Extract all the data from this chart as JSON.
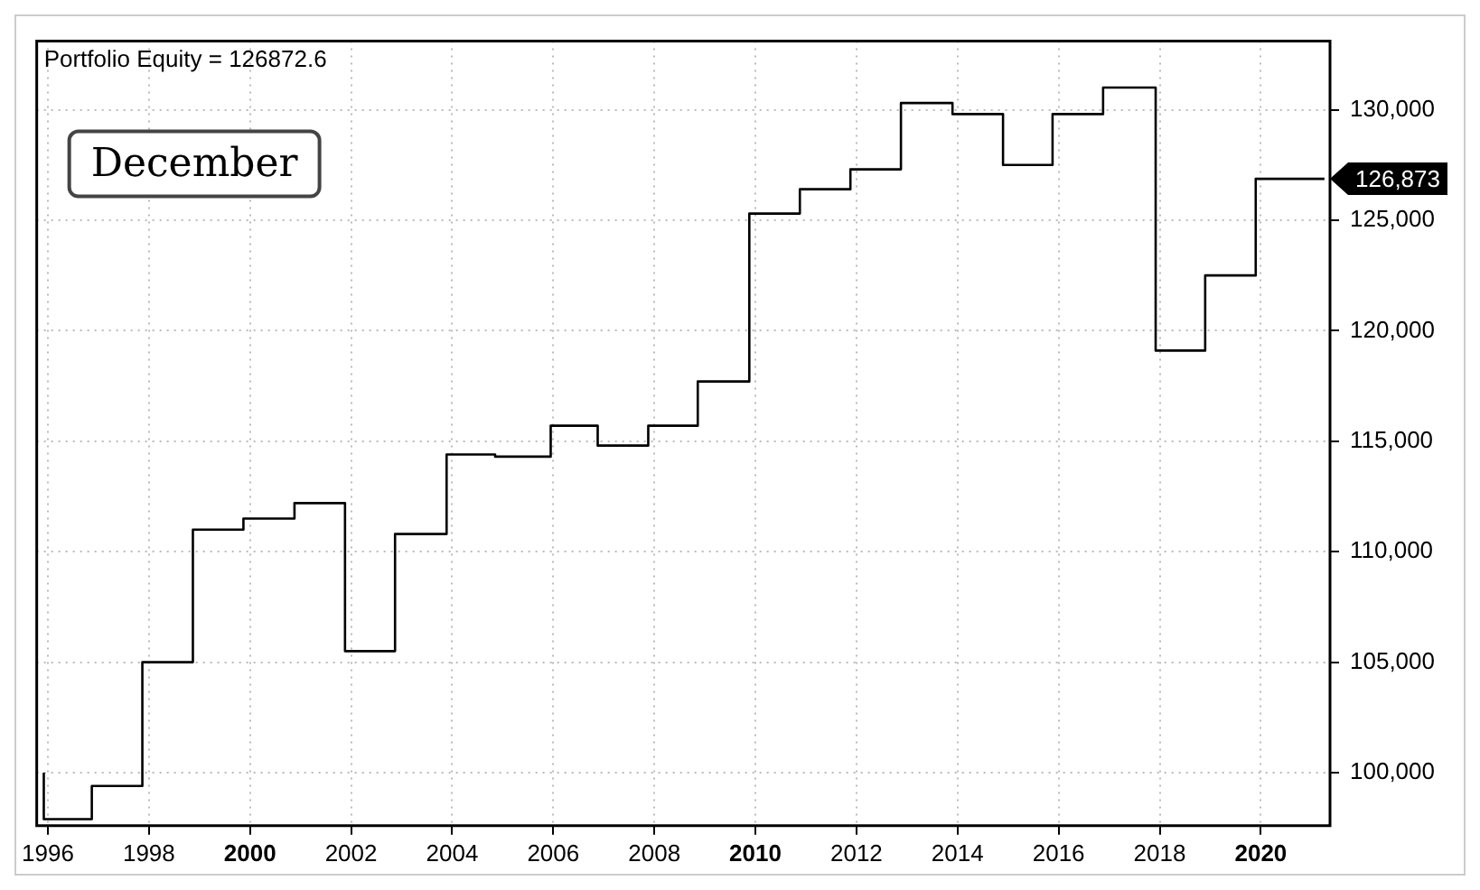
{
  "chart_data": {
    "type": "step",
    "title": "Portfolio Equity = 126872.6",
    "annotations": [
      "December"
    ],
    "x": [
      1995.92,
      1996.87,
      1997.87,
      1998.87,
      1999.87,
      2000.88,
      2001.88,
      2002.87,
      2003.89,
      2004.85,
      2005.95,
      2006.88,
      2007.88,
      2008.86,
      2009.88,
      2010.88,
      2011.88,
      2012.88,
      2013.9,
      2014.9,
      2015.88,
      2016.88,
      2017.92,
      2018.9,
      2019.9,
      2020.9,
      2021.26
    ],
    "series": [
      {
        "color": "#000000",
        "values": [
          100000,
          97900,
          99400,
          105000,
          111000,
          111500,
          112200,
          105500,
          110800,
          114400,
          114300,
          115700,
          114800,
          115700,
          117700,
          125300,
          126400,
          127300,
          130300,
          129800,
          127500,
          129800,
          131000,
          119100,
          122500,
          126872.6,
          126872.6
        ],
        "value_labels": [
          null,
          null,
          null,
          null,
          null,
          null,
          null,
          null,
          null,
          null,
          null,
          null,
          null,
          null,
          null,
          null,
          null,
          null,
          null,
          null,
          null,
          null,
          null,
          null,
          null,
          null,
          "126,873"
        ]
      }
    ],
    "xlim": [
      1995.78,
      2021.37
    ],
    "xticks": [
      1996,
      1998,
      2000,
      2002,
      2004,
      2006,
      2008,
      2010,
      2012,
      2014,
      2016,
      2018,
      2020
    ],
    "ylim": [
      97600,
      133100
    ],
    "yticks": [
      {
        "value": 100000,
        "label": "100,000"
      },
      {
        "value": 105000,
        "label": "105,000"
      },
      {
        "value": 110000,
        "label": "110,000"
      },
      {
        "value": 115000,
        "label": "115,000"
      },
      {
        "value": 120000,
        "label": "120,000"
      },
      {
        "value": 125000,
        "label": "125,000"
      },
      {
        "value": 130000,
        "label": "130,000"
      }
    ],
    "grid": true,
    "legend": false,
    "marker": "none",
    "line_style": "solid"
  }
}
